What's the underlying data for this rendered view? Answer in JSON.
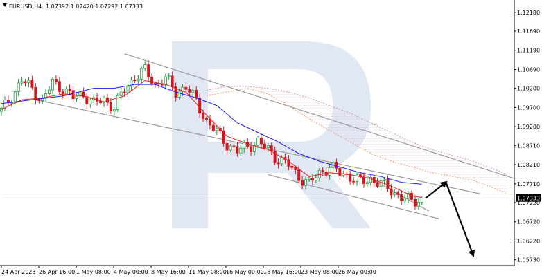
{
  "header": {
    "symbol_tf": "EURUSD,H4",
    "ohlc": "1.07392 1.07420 1.07292 1.07333"
  },
  "colors": {
    "bull": "#1a9a3a",
    "bear": "#d4151f",
    "kijun": "#1a1aff",
    "tenkan": "#e02020",
    "cloud_a": "#f0a060",
    "cloud_b": "#d08ac0",
    "channel": "#9a9a9a",
    "arrow": "#000000",
    "watermark": "#c8d4ea"
  },
  "chart_data": {
    "type": "candlestick",
    "symbol": "EURUSD",
    "timeframe": "H4",
    "last_price": 1.07333,
    "last_price_label": "1.07333",
    "y_ticks": [
      "1.12180",
      "1.11690",
      "1.11190",
      "1.10690",
      "1.10200",
      "1.09700",
      "1.09200",
      "1.08710",
      "1.08210",
      "1.07710",
      "1.07220",
      "1.06720",
      "1.06220",
      "1.05730"
    ],
    "x_ticks": [
      "24 Apr 2023",
      "26 Apr 16:00",
      "1 May 08:00",
      "4 May 00:00",
      "8 May 16:00",
      "11 May 08:00",
      "16 May 00:00",
      "18 May 16:00",
      "23 May 08:00",
      "26 May 00:00"
    ],
    "ylim": [
      1.0558,
      1.1232
    ],
    "close_path": [
      [
        0,
        1.096
      ],
      [
        3,
        1.1
      ],
      [
        6,
        1.104
      ],
      [
        9,
        1.102
      ],
      [
        12,
        1.0985
      ],
      [
        15,
        1.1035
      ],
      [
        18,
        1.102
      ],
      [
        21,
        1.0995
      ],
      [
        24,
        1.1005
      ],
      [
        27,
        1.098
      ],
      [
        30,
        1.099
      ],
      [
        33,
        1.097
      ],
      [
        36,
        1.1015
      ],
      [
        39,
        1.105
      ],
      [
        42,
        1.1065
      ],
      [
        45,
        1.103
      ],
      [
        48,
        1.1045
      ],
      [
        51,
        1.101
      ],
      [
        54,
        1.1025
      ],
      [
        57,
        1.0985
      ],
      [
        60,
        1.0935
      ],
      [
        63,
        1.0905
      ],
      [
        66,
        1.0875
      ],
      [
        69,
        1.0855
      ],
      [
        72,
        1.087
      ],
      [
        75,
        1.088
      ],
      [
        78,
        1.086
      ],
      [
        81,
        1.0835
      ],
      [
        84,
        1.082
      ],
      [
        87,
        1.079
      ],
      [
        90,
        1.077
      ],
      [
        93,
        1.08
      ],
      [
        96,
        1.0815
      ],
      [
        99,
        1.08
      ],
      [
        102,
        1.079
      ],
      [
        105,
        1.0775
      ],
      [
        108,
        1.0785
      ],
      [
        111,
        1.077
      ],
      [
        114,
        1.0755
      ],
      [
        117,
        1.0735
      ],
      [
        120,
        1.0725
      ],
      [
        123,
        1.0733
      ]
    ],
    "tenkan_path": [
      [
        0,
        1.0965
      ],
      [
        6,
        1.099
      ],
      [
        12,
        1.0995
      ],
      [
        18,
        1.1005
      ],
      [
        24,
        1.1
      ],
      [
        30,
        1.0985
      ],
      [
        36,
        1.1
      ],
      [
        42,
        1.104
      ],
      [
        48,
        1.103
      ],
      [
        54,
        1.101
      ],
      [
        60,
        1.095
      ],
      [
        66,
        1.0895
      ],
      [
        72,
        1.0875
      ],
      [
        78,
        1.086
      ],
      [
        84,
        1.083
      ],
      [
        90,
        1.079
      ],
      [
        96,
        1.08
      ],
      [
        102,
        1.0795
      ],
      [
        108,
        1.0785
      ],
      [
        114,
        1.0765
      ],
      [
        120,
        1.074
      ],
      [
        123,
        1.0735
      ]
    ],
    "kijun_path": [
      [
        0,
        1.098
      ],
      [
        9,
        1.099
      ],
      [
        18,
        1.1
      ],
      [
        27,
        1.102
      ],
      [
        33,
        1.102
      ],
      [
        39,
        1.103
      ],
      [
        45,
        1.103
      ],
      [
        51,
        1.101
      ],
      [
        57,
        1.0995
      ],
      [
        63,
        1.0975
      ],
      [
        69,
        1.093
      ],
      [
        75,
        1.0905
      ],
      [
        81,
        1.088
      ],
      [
        87,
        1.085
      ],
      [
        93,
        1.083
      ],
      [
        99,
        1.0815
      ],
      [
        105,
        1.08
      ],
      [
        111,
        1.079
      ],
      [
        117,
        1.0775
      ],
      [
        123,
        1.077
      ]
    ],
    "cloud_a_path": [
      [
        60,
        1.1
      ],
      [
        66,
        1.101
      ],
      [
        72,
        1.102
      ],
      [
        78,
        1.1005
      ],
      [
        84,
        1.0975
      ],
      [
        90,
        1.094
      ],
      [
        96,
        1.091
      ],
      [
        102,
        1.088
      ],
      [
        108,
        1.085
      ],
      [
        114,
        1.083
      ],
      [
        120,
        1.0815
      ],
      [
        126,
        1.08
      ],
      [
        132,
        1.079
      ],
      [
        138,
        1.078
      ],
      [
        144,
        1.076
      ],
      [
        148,
        1.0745
      ]
    ],
    "cloud_b_path": [
      [
        60,
        1.1015
      ],
      [
        66,
        1.1025
      ],
      [
        72,
        1.1025
      ],
      [
        78,
        1.102
      ],
      [
        84,
        1.101
      ],
      [
        90,
        1.0995
      ],
      [
        96,
        1.0975
      ],
      [
        102,
        1.0955
      ],
      [
        108,
        1.093
      ],
      [
        114,
        1.0905
      ],
      [
        120,
        1.088
      ],
      [
        126,
        1.086
      ],
      [
        132,
        1.0845
      ],
      [
        138,
        1.083
      ],
      [
        144,
        1.081
      ],
      [
        148,
        1.0795
      ]
    ],
    "channel_lines": [
      [
        [
          36,
          1.111
        ],
        [
          150,
          1.0785
        ]
      ],
      [
        [
          10,
          1.099
        ],
        [
          140,
          1.0745
        ]
      ],
      [
        [
          78,
          1.0795
        ],
        [
          128,
          1.068
        ]
      ],
      [
        [
          105,
          1.08
        ],
        [
          125,
          1.07
        ]
      ]
    ],
    "forecast_arrows": [
      [
        [
          124,
          1.0733
        ],
        [
          130,
          1.0775
        ]
      ],
      [
        [
          130,
          1.0775
        ],
        [
          138,
          1.0585
        ]
      ]
    ]
  }
}
